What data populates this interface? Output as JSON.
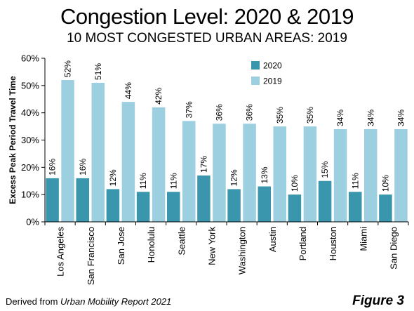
{
  "title": "Congestion Level: 2020 & 2019",
  "subtitle": "10 MOST CONGESTED URBAN AREAS: 2019",
  "source_prefix": "Derived from ",
  "source_italic": "Urban Mobility Report 2021",
  "figure_label": "Figure 3",
  "colors": {
    "series_2020": "#3a96ad",
    "series_2019": "#9ccfe0",
    "axis": "#000000",
    "grid": "none"
  },
  "chart_data": {
    "type": "bar",
    "title": "Congestion Level: 2020 & 2019",
    "subtitle": "10 MOST CONGESTED URBAN AREAS: 2019",
    "xlabel": "",
    "ylabel": "Excess Peak Period Travel Time",
    "ylim": [
      0,
      60
    ],
    "yticks": [
      0,
      10,
      20,
      30,
      40,
      50,
      60
    ],
    "ytick_labels": [
      "0%",
      "10%",
      "20%",
      "30%",
      "40%",
      "50%",
      "60%"
    ],
    "grid": false,
    "legend_position": "top-center",
    "categories": [
      "Los Angeles",
      "San Francisco",
      "San Jose",
      "Honolulu",
      "Seattle",
      "New York",
      "Washington",
      "Austin",
      "Portland",
      "Houston",
      "Miami",
      "San Diego"
    ],
    "series": [
      {
        "name": "2020",
        "color": "#3a96ad",
        "values": [
          16,
          16,
          12,
          11,
          11,
          17,
          12,
          13,
          10,
          15,
          11,
          10
        ],
        "labels": [
          "16%",
          "16%",
          "12%",
          "11%",
          "11%",
          "17%",
          "12%",
          "13%",
          "10%",
          "15%",
          "11%",
          "10%"
        ]
      },
      {
        "name": "2019",
        "color": "#9ccfe0",
        "values": [
          52,
          51,
          44,
          42,
          37,
          36,
          36,
          35,
          35,
          34,
          34,
          34
        ],
        "labels": [
          "52%",
          "51%",
          "44%",
          "42%",
          "37%",
          "36%",
          "36%",
          "35%",
          "35%",
          "34%",
          "34%",
          "34%"
        ]
      }
    ]
  }
}
